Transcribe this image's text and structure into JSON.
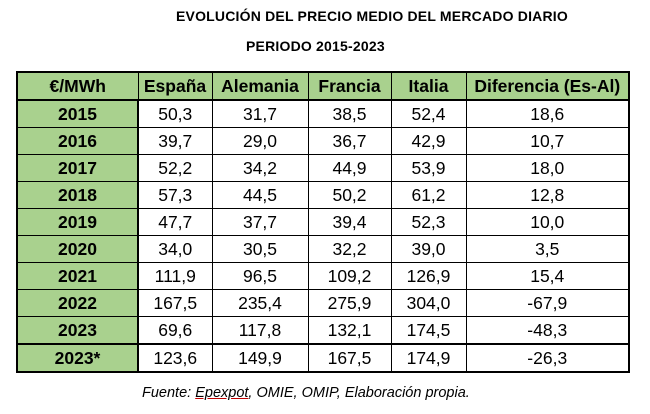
{
  "title": "EVOLUCIÓN DEL PRECIO MEDIO DEL MERCADO DIARIO",
  "subtitle": "PERIODO 2015-2023",
  "table": {
    "headers": [
      "€/MWh",
      "España",
      "Alemania",
      "Francia",
      "Italia",
      "Diferencia (Es-Al)"
    ],
    "rows": [
      [
        "2015",
        "50,3",
        "31,7",
        "38,5",
        "52,4",
        "18,6"
      ],
      [
        "2016",
        "39,7",
        "29,0",
        "36,7",
        "42,9",
        "10,7"
      ],
      [
        "2017",
        "52,2",
        "34,2",
        "44,9",
        "53,9",
        "18,0"
      ],
      [
        "2018",
        "57,3",
        "44,5",
        "50,2",
        "61,2",
        "12,8"
      ],
      [
        "2019",
        "47,7",
        "37,7",
        "39,4",
        "52,3",
        "10,0"
      ],
      [
        "2020",
        "34,0",
        "30,5",
        "32,2",
        "39,0",
        "3,5"
      ],
      [
        "2021",
        "111,9",
        "96,5",
        "109,2",
        "126,9",
        "15,4"
      ],
      [
        "2022",
        "167,5",
        "235,4",
        "275,9",
        "304,0",
        "-67,9"
      ],
      [
        "2023",
        "69,6",
        "117,8",
        "132,1",
        "174,5",
        "-48,3"
      ],
      [
        "2023*",
        "123,6",
        "149,9",
        "167,5",
        "174,9",
        "-26,3"
      ]
    ]
  },
  "source": {
    "prefix": "Fuente: ",
    "underlined": "Epexpot",
    "rest": ", OMIE, OMIP, Elaboración propia."
  }
}
